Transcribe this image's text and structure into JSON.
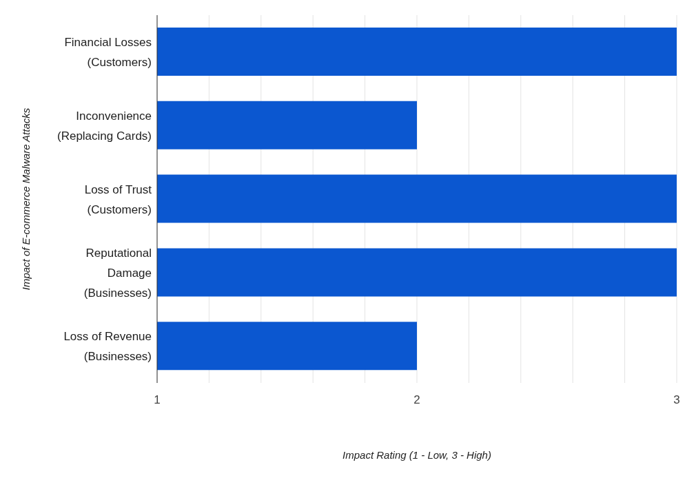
{
  "chart_data": {
    "type": "bar",
    "orientation": "horizontal",
    "xlabel": "Impact Rating (1 - Low, 3 - High)",
    "ylabel": "Impact of E-commerce Malware Attacks",
    "categories": [
      "Financial Losses (Customers)",
      "Inconvenience (Replacing Cards)",
      "Loss of Trust (Customers)",
      "Reputational Damage (Businesses)",
      "Loss of Revenue (Businesses)"
    ],
    "values": [
      3,
      2,
      3,
      3,
      2
    ],
    "color": "#0b57d0",
    "xlim": [
      1,
      3
    ],
    "xticks": [
      1,
      {
        "value": 1.2,
        "label": null
      },
      {
        "value": 1.4,
        "label": null
      },
      {
        "value": 1.6,
        "label": null
      },
      {
        "value": 1.8,
        "label": null
      },
      2,
      {
        "value": 2.2,
        "label": null
      },
      {
        "value": 2.4,
        "label": null
      },
      {
        "value": 2.6,
        "label": null
      },
      {
        "value": 2.8,
        "label": null
      },
      3
    ],
    "grid": "x"
  }
}
